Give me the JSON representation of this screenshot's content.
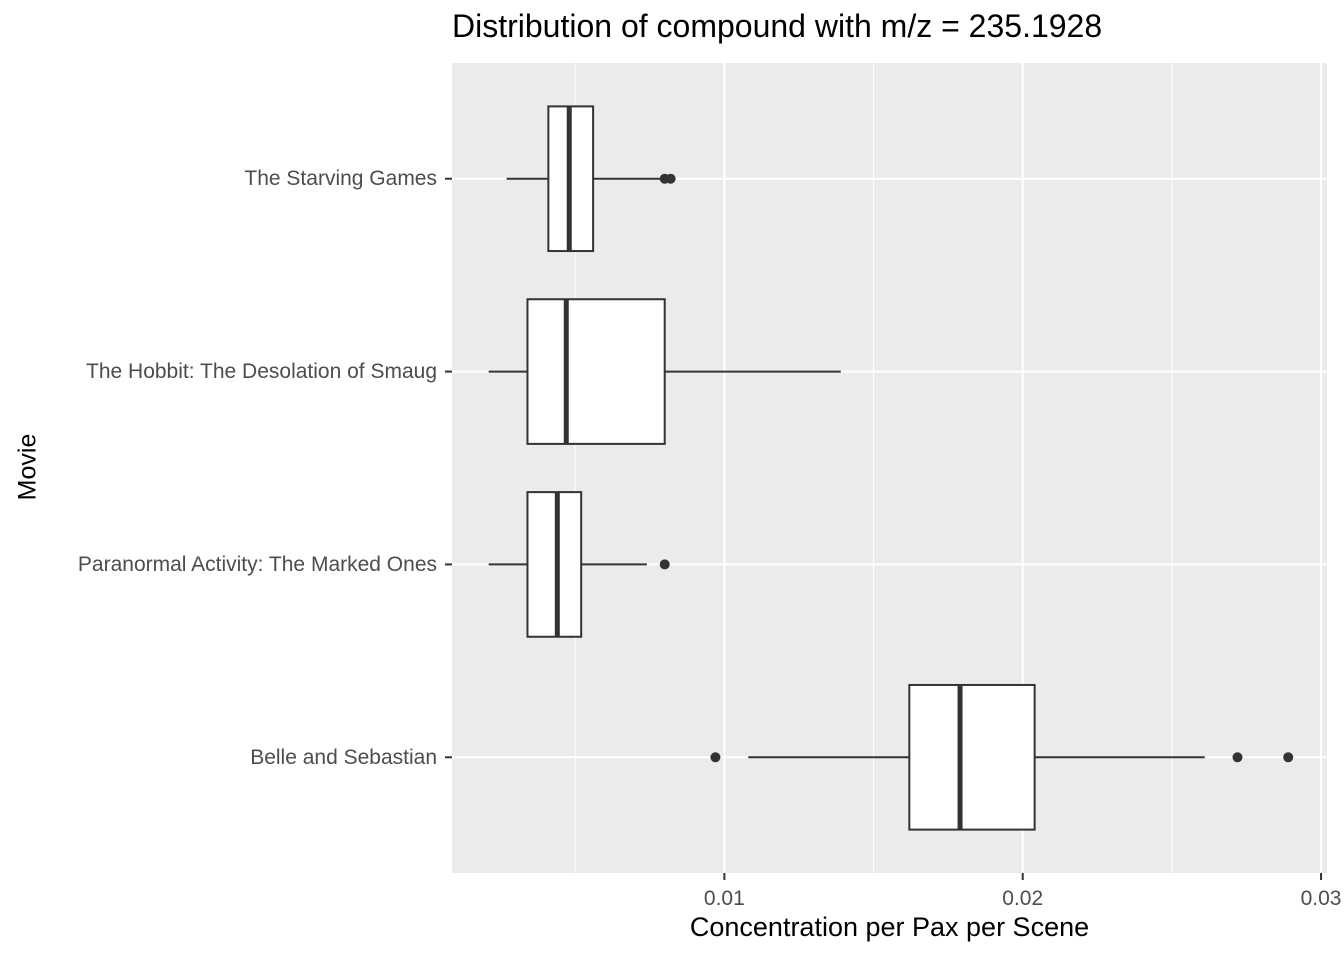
{
  "chart_data": {
    "type": "boxplot",
    "orientation": "horizontal",
    "title": "Distribution of compound with m/z = 235.1928",
    "xlabel": "Concentration per Pax per Scene",
    "ylabel": "Movie",
    "xlim": [
      0.00087,
      0.0302
    ],
    "x_ticks": [
      0.01,
      0.02,
      0.03
    ],
    "x_tick_labels": [
      "0.01",
      "0.02",
      "0.03"
    ],
    "grid": true,
    "legend": "none",
    "categories": [
      "The Starving Games",
      "The Hobbit: The Desolation of Smaug",
      "Paranormal Activity: The Marked Ones",
      "Belle and Sebastian"
    ],
    "series": [
      {
        "category": "The Starving Games",
        "whisker_low": 0.0027,
        "q1": 0.0041,
        "median": 0.0048,
        "q3": 0.0056,
        "whisker_high": 0.0079,
        "outliers": [
          0.008,
          0.0082
        ]
      },
      {
        "category": "The Hobbit: The Desolation of Smaug",
        "whisker_low": 0.0021,
        "q1": 0.0034,
        "median": 0.0047,
        "q3": 0.008,
        "whisker_high": 0.0139,
        "outliers": []
      },
      {
        "category": "Paranormal Activity: The Marked Ones",
        "whisker_low": 0.0021,
        "q1": 0.0034,
        "median": 0.0044,
        "q3": 0.0052,
        "whisker_high": 0.0074,
        "outliers": [
          0.008
        ]
      },
      {
        "category": "Belle and Sebastian",
        "whisker_low": 0.0108,
        "q1": 0.0162,
        "median": 0.0179,
        "q3": 0.0204,
        "whisker_high": 0.0261,
        "outliers": [
          0.0097,
          0.0272,
          0.0289
        ]
      }
    ],
    "colors": {
      "panel": "#ebebeb",
      "grid": "#ffffff",
      "box_fill": "#ffffff",
      "box_stroke": "#333333",
      "tick_label": "#4d4d4d"
    }
  }
}
